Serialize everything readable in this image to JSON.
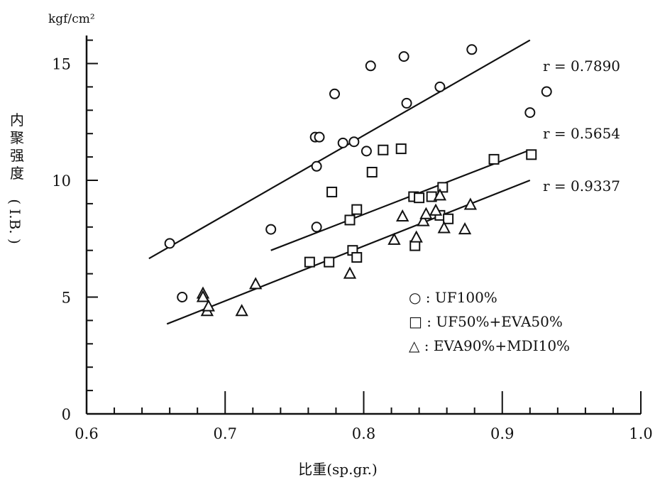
{
  "chart_data": {
    "type": "scatter",
    "title": "",
    "xlabel": "比重(sp.gr.)",
    "ylabel_chars": [
      "内",
      "聚",
      "强",
      "度"
    ],
    "ylabel_sub": "( I.B. )",
    "yunit": "kgf/cm²",
    "xlim": [
      0.6,
      1.0
    ],
    "ylim": [
      0,
      16.5
    ],
    "xticks": [
      0.6,
      0.7,
      0.8,
      0.9,
      1.0
    ],
    "xtick_labels": [
      "0.6",
      "0.7",
      "0.8",
      "0.9",
      "1.0"
    ],
    "yticks": [
      0,
      5,
      10,
      15
    ],
    "ytick_labels": [
      "0",
      "5",
      "10",
      "15"
    ],
    "y_minor_step": 1,
    "x_minor_step": 0.02,
    "grid": false,
    "legend_position": "lower-right",
    "series": [
      {
        "name": "UF100%",
        "legend_label": "○ : UF100%",
        "marker": "circle",
        "r_label": "r = 0.7890",
        "fit": {
          "x": [
            0.645,
            0.92
          ],
          "y": [
            6.65,
            16.0
          ]
        },
        "points": [
          [
            0.66,
            7.3
          ],
          [
            0.669,
            5.0
          ],
          [
            0.733,
            7.9
          ],
          [
            0.765,
            11.85
          ],
          [
            0.768,
            11.85
          ],
          [
            0.766,
            10.6
          ],
          [
            0.766,
            8.0
          ],
          [
            0.779,
            13.7
          ],
          [
            0.785,
            11.6
          ],
          [
            0.793,
            11.65
          ],
          [
            0.802,
            11.25
          ],
          [
            0.805,
            14.9
          ],
          [
            0.829,
            15.3
          ],
          [
            0.831,
            13.3
          ],
          [
            0.855,
            14.0
          ],
          [
            0.878,
            15.6
          ],
          [
            0.92,
            12.9
          ],
          [
            0.932,
            13.8
          ]
        ]
      },
      {
        "name": "UF50%+EVA50%",
        "legend_label": "□ : UF50%+EVA50%",
        "marker": "square",
        "r_label": "r = 0.5654",
        "fit": {
          "x": [
            0.733,
            0.92
          ],
          "y": [
            7.0,
            11.3
          ]
        },
        "points": [
          [
            0.761,
            6.5
          ],
          [
            0.775,
            6.5
          ],
          [
            0.777,
            9.5
          ],
          [
            0.79,
            8.3
          ],
          [
            0.792,
            7.0
          ],
          [
            0.795,
            6.7
          ],
          [
            0.795,
            8.75
          ],
          [
            0.806,
            10.35
          ],
          [
            0.814,
            11.3
          ],
          [
            0.827,
            11.35
          ],
          [
            0.836,
            9.3
          ],
          [
            0.837,
            7.2
          ],
          [
            0.84,
            9.25
          ],
          [
            0.849,
            9.3
          ],
          [
            0.855,
            8.5
          ],
          [
            0.857,
            9.7
          ],
          [
            0.861,
            8.35
          ],
          [
            0.894,
            10.9
          ],
          [
            0.921,
            11.1
          ]
        ]
      },
      {
        "name": "EVA90%+MDI10%",
        "legend_label": "△ : EVA90%+MDI10%",
        "marker": "triangle",
        "r_label": "r = 0.9337",
        "fit": {
          "x": [
            0.658,
            0.92
          ],
          "y": [
            3.85,
            10.0
          ]
        },
        "points": [
          [
            0.684,
            5.15
          ],
          [
            0.684,
            5.0
          ],
          [
            0.687,
            4.4
          ],
          [
            0.688,
            4.6
          ],
          [
            0.712,
            4.4
          ],
          [
            0.722,
            5.55
          ],
          [
            0.79,
            6.0
          ],
          [
            0.822,
            7.45
          ],
          [
            0.828,
            8.45
          ],
          [
            0.838,
            7.55
          ],
          [
            0.843,
            8.25
          ],
          [
            0.845,
            8.55
          ],
          [
            0.852,
            8.7
          ],
          [
            0.855,
            9.35
          ],
          [
            0.858,
            7.95
          ],
          [
            0.873,
            7.9
          ],
          [
            0.877,
            8.95
          ]
        ]
      }
    ]
  }
}
